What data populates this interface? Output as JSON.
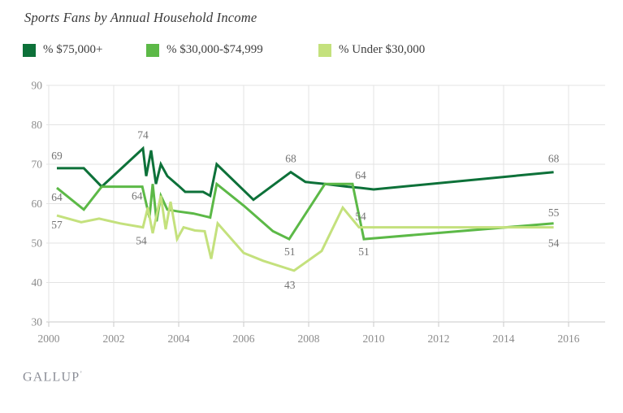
{
  "title": "Sports Fans by Annual Household Income",
  "source": "GALLUP",
  "legend": {
    "items": [
      {
        "label": "% $75,000+",
        "color": "#0d7139"
      },
      {
        "label": "% $30,000-$74,999",
        "color": "#5cb947"
      },
      {
        "label": "% Under $30,000",
        "color": "#c4e17d"
      }
    ]
  },
  "axis_style": {
    "gridline_color": "#e3e3e3",
    "axis_line_color": "#c9c9c9",
    "tick_label_color": "#8c8c8c",
    "point_label_color": "#737373"
  },
  "chart_data": {
    "type": "line",
    "title": "Sports Fans by Annual Household Income",
    "xlabel": "",
    "ylabel": "",
    "xlim": [
      2000,
      2016
    ],
    "ylim": [
      30,
      90
    ],
    "grid": true,
    "legend_position": "top",
    "x_ticks": [
      2000,
      2002,
      2004,
      2006,
      2008,
      2010,
      2012,
      2014,
      2016
    ],
    "y_ticks": [
      90,
      80,
      70,
      60,
      50,
      40,
      30
    ],
    "series": [
      {
        "name": "% $75,000+",
        "color": "#0d7139",
        "points": [
          [
            2000.25,
            69
          ],
          [
            2001.08,
            69
          ],
          [
            2001.63,
            64.3
          ],
          [
            2002.9,
            74
          ],
          [
            2003.0,
            67
          ],
          [
            2003.15,
            73.5
          ],
          [
            2003.3,
            65
          ],
          [
            2003.45,
            70
          ],
          [
            2003.65,
            67
          ],
          [
            2004.0,
            64.5
          ],
          [
            2004.2,
            63
          ],
          [
            2004.75,
            63
          ],
          [
            2004.97,
            62
          ],
          [
            2005.17,
            70
          ],
          [
            2006.3,
            61
          ],
          [
            2007.45,
            68
          ],
          [
            2007.9,
            65.5
          ],
          [
            2008.5,
            65
          ],
          [
            2009.2,
            64.3
          ],
          [
            2009.6,
            64
          ],
          [
            2010.0,
            63.6
          ],
          [
            2015.54,
            68
          ]
        ]
      },
      {
        "name": "% $30,000-$74,999",
        "color": "#5cb947",
        "points": [
          [
            2000.25,
            64
          ],
          [
            2001.08,
            58.5
          ],
          [
            2001.63,
            64.3
          ],
          [
            2002.88,
            64.3
          ],
          [
            2003.1,
            56.5
          ],
          [
            2003.2,
            65
          ],
          [
            2003.32,
            55.5
          ],
          [
            2003.45,
            62
          ],
          [
            2003.65,
            58.5
          ],
          [
            2004.0,
            58
          ],
          [
            2004.45,
            57.5
          ],
          [
            2004.97,
            56.5
          ],
          [
            2005.17,
            65
          ],
          [
            2006.0,
            59.5
          ],
          [
            2006.9,
            53
          ],
          [
            2007.4,
            51
          ],
          [
            2008.5,
            65
          ],
          [
            2009.35,
            65
          ],
          [
            2009.7,
            51
          ],
          [
            2015.54,
            55
          ]
        ]
      },
      {
        "name": "% Under $30,000",
        "color": "#c4e17d",
        "points": [
          [
            2000.25,
            57
          ],
          [
            2001.0,
            55.3
          ],
          [
            2001.55,
            56.2
          ],
          [
            2002.2,
            55
          ],
          [
            2002.9,
            54
          ],
          [
            2003.05,
            59
          ],
          [
            2003.2,
            52.5
          ],
          [
            2003.45,
            62
          ],
          [
            2003.6,
            53.5
          ],
          [
            2003.75,
            60.5
          ],
          [
            2003.95,
            51
          ],
          [
            2004.15,
            54
          ],
          [
            2004.5,
            53.2
          ],
          [
            2004.8,
            53
          ],
          [
            2005.0,
            46
          ],
          [
            2005.2,
            55
          ],
          [
            2006.0,
            47.5
          ],
          [
            2006.6,
            45.5
          ],
          [
            2007.55,
            43
          ],
          [
            2008.4,
            48
          ],
          [
            2009.05,
            59
          ],
          [
            2009.55,
            54
          ],
          [
            2015.54,
            54
          ]
        ]
      }
    ],
    "point_labels": [
      {
        "series": 0,
        "year": 2000.25,
        "value": 69,
        "text": "69",
        "dy": -11
      },
      {
        "series": 0,
        "year": 2002.9,
        "value": 74,
        "text": "74",
        "dy": -12
      },
      {
        "series": 0,
        "year": 2007.45,
        "value": 68,
        "text": "68",
        "dy": -12
      },
      {
        "series": 0,
        "year": 2009.6,
        "value": 64,
        "text": "64",
        "dy": -11
      },
      {
        "series": 0,
        "year": 2015.54,
        "value": 68,
        "text": "68",
        "dy": -12
      },
      {
        "series": 1,
        "year": 2000.25,
        "value": 64,
        "text": "64",
        "dy": 16
      },
      {
        "series": 1,
        "year": 2002.72,
        "value": 64.3,
        "text": "64",
        "dy": 16
      },
      {
        "series": 1,
        "year": 2007.42,
        "value": 51,
        "text": "51",
        "dy": 20
      },
      {
        "series": 1,
        "year": 2009.7,
        "value": 51,
        "text": "51",
        "dy": 20
      },
      {
        "series": 1,
        "year": 2015.54,
        "value": 55,
        "text": "55",
        "dy": -9
      },
      {
        "series": 2,
        "year": 2000.25,
        "value": 57,
        "text": "57",
        "dy": 16
      },
      {
        "series": 2,
        "year": 2002.85,
        "value": 54,
        "text": "54",
        "dy": 21
      },
      {
        "series": 2,
        "year": 2007.42,
        "value": 43,
        "text": "43",
        "dy": 22
      },
      {
        "series": 2,
        "year": 2009.6,
        "value": 54,
        "text": "54",
        "dy": -9
      },
      {
        "series": 2,
        "year": 2015.54,
        "value": 54,
        "text": "54",
        "dy": 24
      }
    ]
  }
}
